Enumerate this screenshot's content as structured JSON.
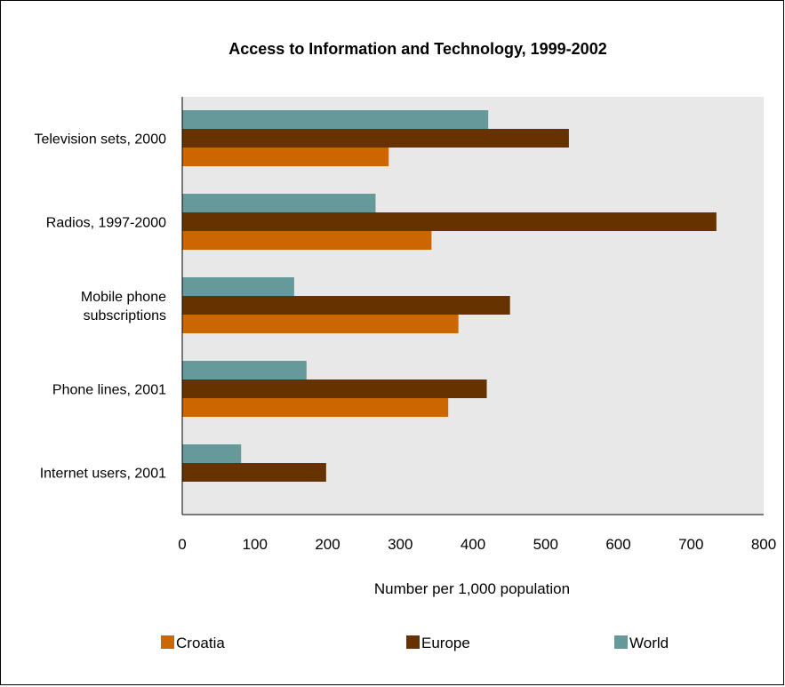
{
  "chart_data": {
    "type": "bar",
    "orientation": "horizontal",
    "title": "Access to Information and Technology, 1999-2002",
    "xlabel": "Number per 1,000 population",
    "ylabel": "",
    "xlim": [
      0,
      800
    ],
    "xticks": [
      0,
      100,
      200,
      300,
      400,
      500,
      600,
      700,
      800
    ],
    "grid": false,
    "plot_background": "#e8e8e8",
    "legend_position": "bottom",
    "categories": [
      [
        "Television sets, 2000"
      ],
      [
        "Radios, 1997-2000"
      ],
      [
        "Mobile phone",
        "subscriptions"
      ],
      [
        "Phone lines, 2001"
      ],
      [
        "Internet users, 2001"
      ]
    ],
    "series": [
      {
        "name": "World",
        "color": "#669999",
        "values": [
          421,
          266,
          154,
          171,
          81
        ]
      },
      {
        "name": "Europe",
        "color": "#663300",
        "values": [
          532,
          735,
          451,
          419,
          198
        ]
      },
      {
        "name": "Croatia",
        "color": "#cc6600",
        "values": [
          284,
          343,
          380,
          366,
          0
        ]
      }
    ],
    "legend_order": [
      "Croatia",
      "Europe",
      "World"
    ]
  }
}
